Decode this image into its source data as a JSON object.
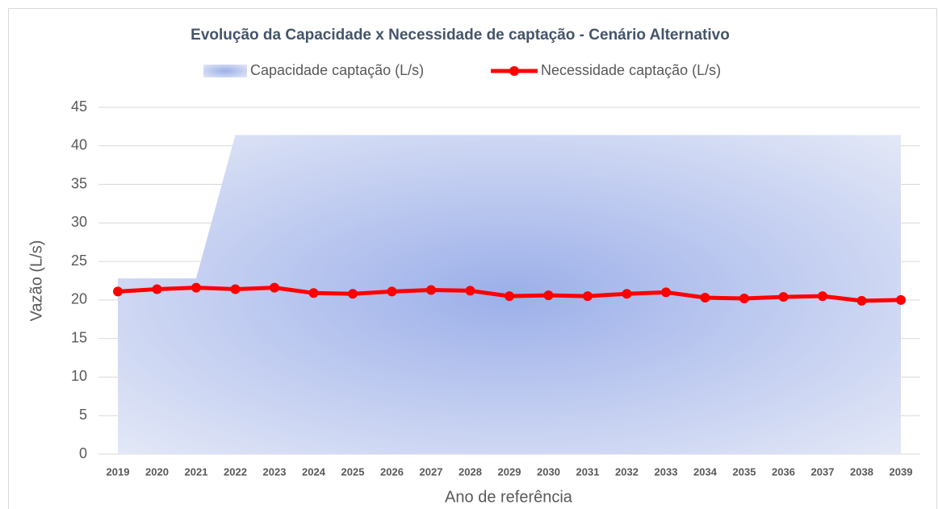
{
  "chart_data": {
    "type": "combo",
    "title": "Evolução da Capacidade x Necessidade de captação - Cenário Alternativo",
    "x_label": "Ano de referência",
    "y_label": "Vazão (L/s)",
    "categories": [
      "2019",
      "2020",
      "2021",
      "2022",
      "2023",
      "2024",
      "2025",
      "2026",
      "2027",
      "2028",
      "2029",
      "2030",
      "2031",
      "2032",
      "2033",
      "2034",
      "2035",
      "2036",
      "2037",
      "2038",
      "2039"
    ],
    "series": [
      {
        "name": "Capacidade captação (L/s)",
        "type": "area",
        "color": "#9cafe9",
        "values": [
          22.8,
          22.8,
          22.8,
          41.4,
          41.4,
          41.4,
          41.4,
          41.4,
          41.4,
          41.4,
          41.4,
          41.4,
          41.4,
          41.4,
          41.4,
          41.4,
          41.4,
          41.4,
          41.4,
          41.4,
          41.4
        ]
      },
      {
        "name": "Necessidade captação (L/s)",
        "type": "line",
        "color": "#ff0000",
        "values": [
          21.1,
          21.4,
          21.6,
          21.4,
          21.6,
          20.9,
          20.8,
          21.1,
          21.3,
          21.2,
          20.5,
          20.6,
          20.5,
          20.8,
          21.0,
          20.3,
          20.2,
          20.4,
          20.5,
          19.9,
          20.0
        ]
      }
    ],
    "ylim": [
      0,
      45
    ],
    "yticks": [
      0,
      5,
      10,
      15,
      20,
      25,
      30,
      35,
      40,
      45
    ],
    "grid": true,
    "legend": "top"
  }
}
